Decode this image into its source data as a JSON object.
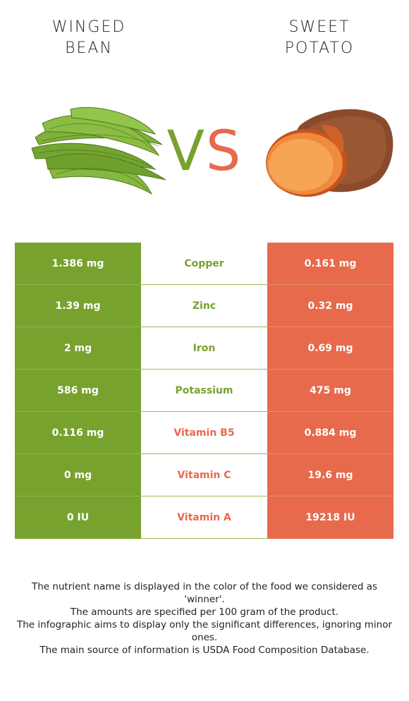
{
  "foods": {
    "left": {
      "title_line1": "WINGED",
      "title_line2": "BEAN",
      "color": "#78a22e"
    },
    "right": {
      "title_line1": "SWEET",
      "title_line2": "POTATO",
      "color": "#e76a4c"
    }
  },
  "vs": {
    "v": "V",
    "s": "S"
  },
  "rows": [
    {
      "left": "1.386 mg",
      "nutrient": "Copper",
      "right": "0.161 mg",
      "winner": "left"
    },
    {
      "left": "1.39 mg",
      "nutrient": "Zinc",
      "right": "0.32 mg",
      "winner": "left"
    },
    {
      "left": "2 mg",
      "nutrient": "Iron",
      "right": "0.69 mg",
      "winner": "left"
    },
    {
      "left": "586 mg",
      "nutrient": "Potassium",
      "right": "475 mg",
      "winner": "left"
    },
    {
      "left": "0.116 mg",
      "nutrient": "Vitamin B5",
      "right": "0.884 mg",
      "winner": "right"
    },
    {
      "left": "0 mg",
      "nutrient": "Vitamin C",
      "right": "19.6 mg",
      "winner": "right"
    },
    {
      "left": "0 IU",
      "nutrient": "Vitamin A",
      "right": "19218 IU",
      "winner": "right"
    }
  ],
  "notes": [
    "The nutrient name is displayed in the color of the food we considered as 'winner'.",
    "The amounts are specified per 100 gram of the product.",
    "The infographic aims to display only the significant differences, ignoring minor ones.",
    "The main source of information is USDA Food Composition Database."
  ]
}
